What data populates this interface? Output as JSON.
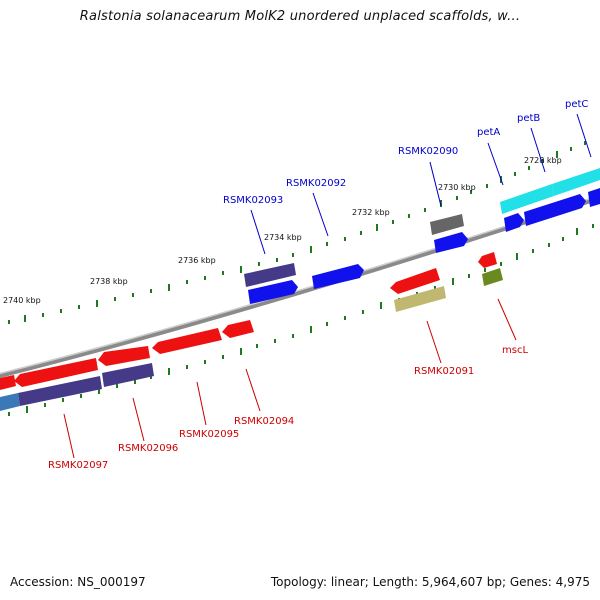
{
  "title": "Ralstonia solanacearum MolK2 unordered unplaced scaffolds, w...",
  "footer": {
    "accession": "Accession: NS_000197",
    "topology": "Topology: linear; Length: 5,964,607 bp; Genes: 4,975"
  },
  "colors": {
    "backbone": "#8c8c8c",
    "tick": "#1e7a1e",
    "forward_label": "#0000cc",
    "reverse_label": "#cc0000",
    "red": "#ee1111",
    "blue": "#1111ee",
    "navy": "#443a88",
    "gray": "#666666",
    "cyan": "#22e0e8",
    "olive": "#c0b870",
    "darkgreen": "#6a8a20"
  },
  "kbp_labels": [
    "2740 kbp",
    "2738 kbp",
    "2736 kbp",
    "2734 kbp",
    "2732 kbp",
    "2730 kbp",
    "2728 kbp"
  ],
  "gene_labels": {
    "RSMK02097": "RSMK02097",
    "RSMK02096": "RSMK02096",
    "RSMK02095": "RSMK02095",
    "RSMK02094": "RSMK02094",
    "RSMK02093": "RSMK02093",
    "RSMK02092": "RSMK02092",
    "RSMK02091": "RSMK02091",
    "RSMK02090": "RSMK02090",
    "petA": "petA",
    "petB": "petB",
    "petC": "petC",
    "mscL": "mscL"
  }
}
